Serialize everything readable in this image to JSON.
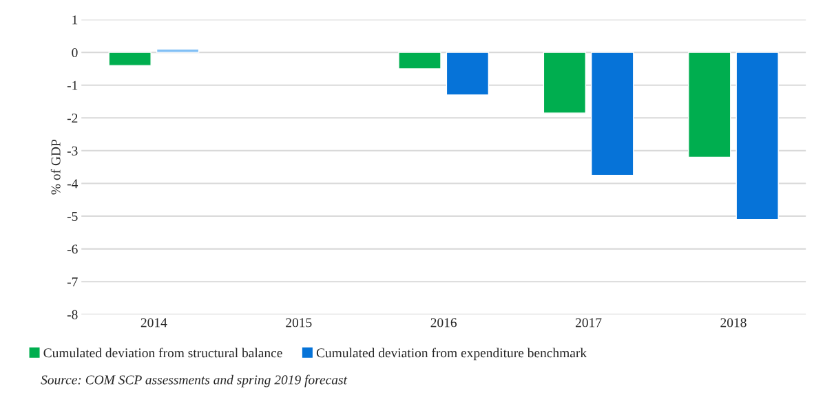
{
  "chart_data": {
    "type": "bar",
    "ylabel": "% of GDP",
    "categories": [
      "2014",
      "2015",
      "2016",
      "2017",
      "2018"
    ],
    "series": [
      {
        "name": "Cumulated deviation from structural balance",
        "color": "#00ae4f",
        "values": [
          -0.4,
          null,
          -0.5,
          -1.85,
          -3.2
        ]
      },
      {
        "name": "Cumulated deviation from expenditure benchmark",
        "color": "#0673d8",
        "colors": [
          "#82c0f5",
          "#0673d8",
          "#0673d8",
          "#0673d8",
          "#0673d8"
        ],
        "values": [
          0.1,
          null,
          -1.3,
          -3.75,
          -5.1
        ]
      }
    ],
    "ylim": [
      -8,
      1
    ],
    "yticks": [
      -8,
      -7,
      -6,
      -5,
      -4,
      -3,
      -2,
      -1,
      0,
      1
    ],
    "grid": "y",
    "legend": "bottom",
    "annotations": [
      "Source: COM SCP assessments and spring 2019 forecast"
    ]
  }
}
